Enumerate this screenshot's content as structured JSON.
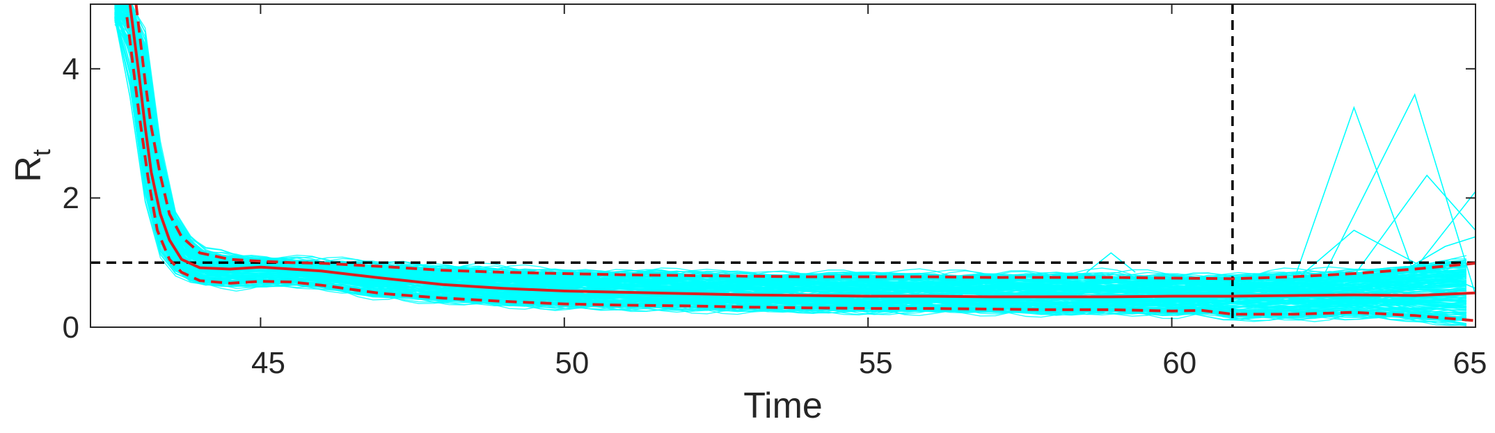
{
  "chart_data": {
    "type": "line",
    "title": "",
    "xlabel": "Time",
    "ylabel": {
      "main": "R",
      "subscript": "t"
    },
    "xlim": [
      42.2,
      65
    ],
    "ylim": [
      0,
      5
    ],
    "x_ticks": [
      "45",
      "50",
      "55",
      "60",
      "65"
    ],
    "y_ticks": [
      "0",
      "2",
      "4"
    ],
    "grid": false,
    "legend": "none",
    "reference_lines": [
      {
        "orientation": "horizontal",
        "value": 1,
        "style": "dashed",
        "color": "#000000"
      },
      {
        "orientation": "vertical",
        "value": 61,
        "style": "dashed",
        "color": "#000000"
      }
    ],
    "colors": {
      "ensemble": "#00ffff",
      "median": "#d92020",
      "bounds": "#d92020",
      "axes": "#262626"
    },
    "ensemble_count": 200,
    "median": {
      "x": [
        42.85,
        43.0,
        43.1,
        43.2,
        43.35,
        43.5,
        43.7,
        44.0,
        44.5,
        45.0,
        45.5,
        46.0,
        47.0,
        48.0,
        49.0,
        50.0,
        51.0,
        52.0,
        53.0,
        54.0,
        55.0,
        56.0,
        57.0,
        58.0,
        59.0,
        60.0,
        61.0,
        62.0,
        63.0,
        64.0,
        65.0
      ],
      "y": [
        5.0,
        3.9,
        3.1,
        2.4,
        1.75,
        1.35,
        1.05,
        0.92,
        0.9,
        0.93,
        0.9,
        0.87,
        0.76,
        0.66,
        0.6,
        0.56,
        0.54,
        0.52,
        0.5,
        0.49,
        0.48,
        0.48,
        0.47,
        0.47,
        0.47,
        0.48,
        0.48,
        0.49,
        0.5,
        0.49,
        0.53
      ]
    },
    "upper_bound": {
      "x": [
        42.95,
        43.1,
        43.2,
        43.35,
        43.5,
        43.7,
        44.0,
        44.5,
        45.0,
        45.5,
        46.0,
        47.0,
        48.0,
        49.0,
        50.0,
        51.0,
        52.0,
        53.0,
        54.0,
        55.0,
        56.0,
        57.0,
        58.0,
        59.0,
        60.0,
        61.0,
        62.0,
        63.0,
        64.0,
        65.0
      ],
      "y": [
        5.0,
        3.8,
        3.1,
        2.35,
        1.75,
        1.4,
        1.15,
        1.05,
        1.02,
        1.0,
        0.99,
        0.94,
        0.88,
        0.85,
        0.83,
        0.81,
        0.8,
        0.79,
        0.78,
        0.78,
        0.78,
        0.77,
        0.77,
        0.77,
        0.76,
        0.75,
        0.78,
        0.83,
        0.9,
        0.99
      ]
    },
    "lower_bound": {
      "x": [
        42.8,
        43.0,
        43.15,
        43.3,
        43.5,
        43.7,
        44.0,
        44.5,
        45.0,
        45.5,
        46.0,
        47.0,
        48.0,
        49.0,
        50.0,
        51.0,
        52.0,
        53.0,
        54.0,
        55.0,
        56.0,
        57.0,
        58.0,
        59.0,
        60.0,
        60.5,
        61.0,
        62.0,
        63.0,
        64.0,
        65.0
      ],
      "y": [
        4.8,
        3.3,
        2.3,
        1.5,
        1.05,
        0.85,
        0.72,
        0.68,
        0.71,
        0.7,
        0.65,
        0.52,
        0.45,
        0.4,
        0.36,
        0.34,
        0.33,
        0.31,
        0.3,
        0.29,
        0.29,
        0.28,
        0.27,
        0.27,
        0.25,
        0.26,
        0.2,
        0.2,
        0.23,
        0.18,
        0.1
      ]
    },
    "outlier_spikes": [
      {
        "x": [
          62.0,
          63.0,
          64.0
        ],
        "y": [
          0.7,
          3.4,
          0.8
        ]
      },
      {
        "x": [
          62.5,
          64.0,
          65.0
        ],
        "y": [
          0.8,
          3.6,
          0.5
        ]
      },
      {
        "x": [
          63.0,
          64.2,
          65.0
        ],
        "y": [
          0.8,
          2.35,
          1.5
        ]
      },
      {
        "x": [
          62.0,
          63.0,
          64.0,
          65.0
        ],
        "y": [
          0.7,
          1.5,
          1.0,
          0.6
        ]
      },
      {
        "x": [
          64.0,
          65.0
        ],
        "y": [
          0.9,
          2.1
        ]
      },
      {
        "x": [
          58.6,
          59.0,
          59.4
        ],
        "y": [
          0.85,
          1.15,
          0.85
        ]
      },
      {
        "x": [
          63.5,
          64.5,
          65.0
        ],
        "y": [
          0.7,
          1.25,
          1.4
        ]
      }
    ]
  }
}
